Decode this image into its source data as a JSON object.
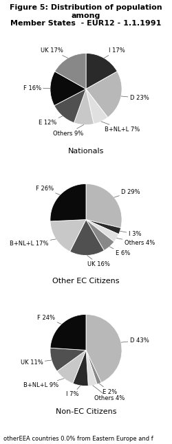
{
  "title": "Figure 5: Distribution of population among\nMember States  - EUR12 - 1.1.1991",
  "annotations": [
    "otherEEA countries 0.0% from Eastern Europe and f"
  ],
  "chart_data": [
    {
      "type": "pie",
      "title": "Nationals",
      "categories": [
        "I",
        "D",
        "B+NL+L",
        "Others",
        "E",
        "F",
        "UK"
      ],
      "values": [
        17,
        23,
        7,
        9,
        12,
        16,
        17
      ],
      "value_labels": [
        "I 17%",
        "D 23%",
        "B+NL+L 7%",
        "Others 9%",
        "E 12%",
        "F 16%",
        "UK 17%"
      ],
      "colors": [
        "#2a2a2a",
        "#b8b8b8",
        "#e0e0e0",
        "#c8c8c8",
        "#505050",
        "#0a0a0a",
        "#888888"
      ],
      "data_labels": true
    },
    {
      "type": "pie",
      "title": "Other EC Citizens",
      "categories": [
        "D",
        "I",
        "Others",
        "E",
        "UK",
        "B+NL+L",
        "F"
      ],
      "values": [
        29,
        3,
        4,
        6,
        16,
        17,
        26
      ],
      "value_labels": [
        "D 29%",
        "I 3%",
        "Others 4%",
        "E 6%",
        "UK 16%",
        "B+NL+L 17%",
        "F 26%"
      ],
      "colors": [
        "#b8b8b8",
        "#2a2a2a",
        "#e0e0e0",
        "#888888",
        "#505050",
        "#c8c8c8",
        "#0a0a0a"
      ],
      "data_labels": true
    },
    {
      "type": "pie",
      "title": "Non-EC Citizens",
      "categories": [
        "D",
        "E",
        "Others",
        "I",
        "B+NL+L",
        "UK",
        "F"
      ],
      "values": [
        43,
        2,
        4,
        7,
        9,
        11,
        24
      ],
      "value_labels": [
        "D 43%",
        "E 2%",
        "Others 4%",
        "I 7%",
        "B+NL+L 9%",
        "UK 11%",
        "F 24%"
      ],
      "colors": [
        "#b8b8b8",
        "#888888",
        "#e0e0e0",
        "#2a2a2a",
        "#c8c8c8",
        "#505050",
        "#0a0a0a"
      ],
      "data_labels": true
    }
  ]
}
